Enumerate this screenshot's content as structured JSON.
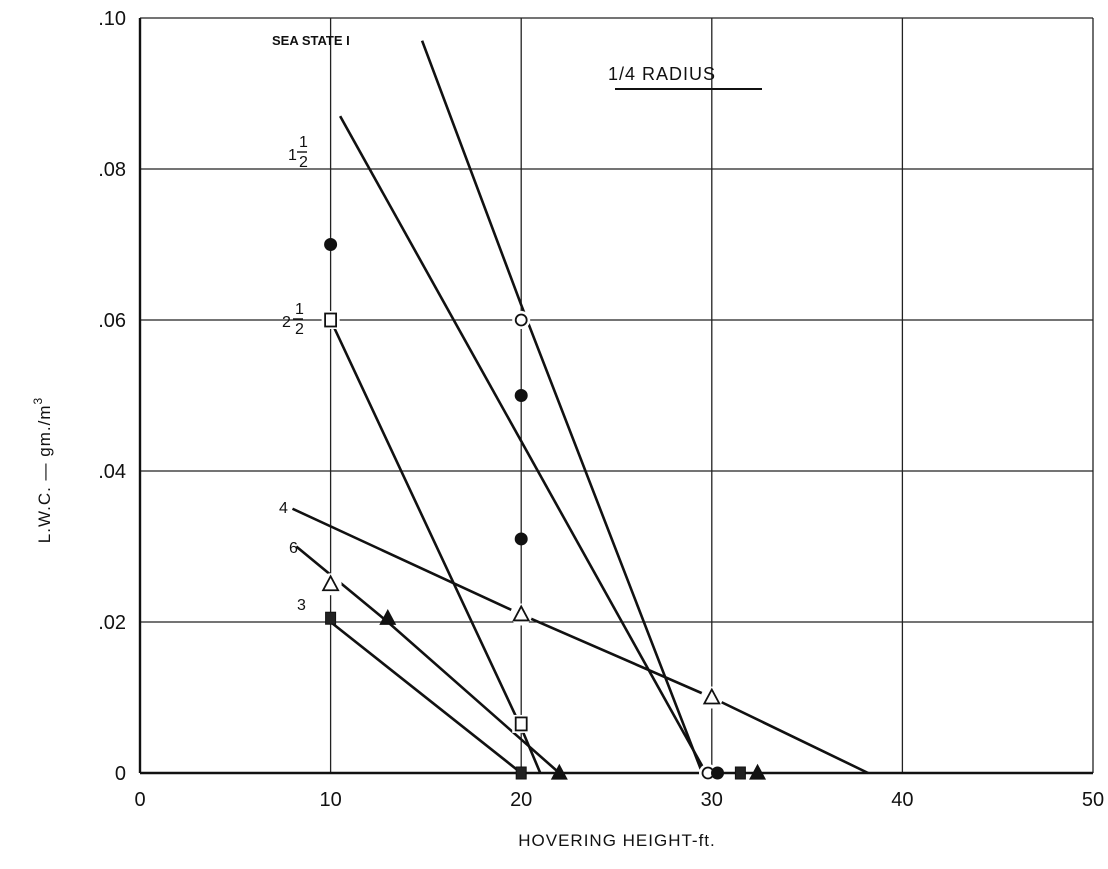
{
  "chart_data": {
    "type": "line",
    "title": "1/4 RADIUS",
    "xlabel": "HOVERING HEIGHT-ft.",
    "ylabel": "L.W.C. — gm./m",
    "ylabel_sup": "3",
    "xlim": [
      0,
      50
    ],
    "ylim": [
      0,
      0.1
    ],
    "xticks": [
      {
        "v": 0,
        "label": "0"
      },
      {
        "v": 10,
        "label": "10"
      },
      {
        "v": 20,
        "label": "20"
      },
      {
        "v": 30,
        "label": "30"
      },
      {
        "v": 40,
        "label": "40"
      },
      {
        "v": 50,
        "label": "50"
      }
    ],
    "yticks": [
      {
        "v": 0,
        "label": "0"
      },
      {
        "v": 0.02,
        "label": ".02"
      },
      {
        "v": 0.04,
        "label": ".04"
      },
      {
        "v": 0.06,
        "label": ".06"
      },
      {
        "v": 0.08,
        "label": ".08"
      },
      {
        "v": 0.1,
        "label": ".10"
      }
    ],
    "grid": true,
    "series": [
      {
        "name": "SEA STATE 1",
        "marker": "open-circle",
        "line": [
          [
            14.8,
            0.097
          ],
          [
            20,
            0.062
          ],
          [
            29.5,
            0
          ]
        ],
        "points": [
          [
            20,
            0.06
          ],
          [
            29.8,
            0
          ]
        ]
      },
      {
        "name": "1 1/2",
        "marker": "filled-circle",
        "line": [
          [
            10.5,
            0.087
          ],
          [
            29.7,
            0
          ]
        ],
        "points": [
          [
            10,
            0.07
          ],
          [
            20,
            0.05
          ],
          [
            20,
            0.031
          ],
          [
            30.3,
            0
          ]
        ]
      },
      {
        "name": "2 1/2",
        "marker": "open-square",
        "line": [
          [
            10,
            0.06
          ],
          [
            20,
            0.006
          ],
          [
            21,
            0
          ]
        ],
        "points": [
          [
            10,
            0.06
          ],
          [
            20,
            0.0065
          ]
        ]
      },
      {
        "name": "4",
        "marker": "open-triangle",
        "line": [
          [
            8,
            0.035
          ],
          [
            20,
            0.021
          ],
          [
            30,
            0.01
          ],
          [
            38.2,
            0
          ]
        ],
        "points": [
          [
            10,
            0.025
          ],
          [
            20,
            0.021
          ],
          [
            30,
            0.01
          ]
        ]
      },
      {
        "name": "6",
        "marker": "filled-triangle",
        "line": [
          [
            8.2,
            0.03
          ],
          [
            13,
            0.02
          ],
          [
            22,
            0
          ]
        ],
        "points": [
          [
            13,
            0.0205
          ],
          [
            22,
            0
          ],
          [
            32.4,
            0
          ]
        ]
      },
      {
        "name": "3",
        "marker": "filled-square",
        "line": [
          [
            10,
            0.02
          ],
          [
            20,
            0
          ]
        ],
        "points": [
          [
            10,
            0.0205
          ],
          [
            20,
            0
          ],
          [
            31.5,
            0
          ]
        ]
      }
    ],
    "annotations": [
      {
        "text": "SEA STATE I",
        "series": 0
      },
      {
        "text": "1",
        "frac": [
          "1",
          "2"
        ],
        "series": 1
      },
      {
        "text": "2",
        "frac": [
          "1",
          "2"
        ],
        "series": 2
      },
      {
        "text": "4",
        "series": 3
      },
      {
        "text": "6",
        "series": 4
      },
      {
        "text": "3",
        "series": 5
      }
    ]
  }
}
